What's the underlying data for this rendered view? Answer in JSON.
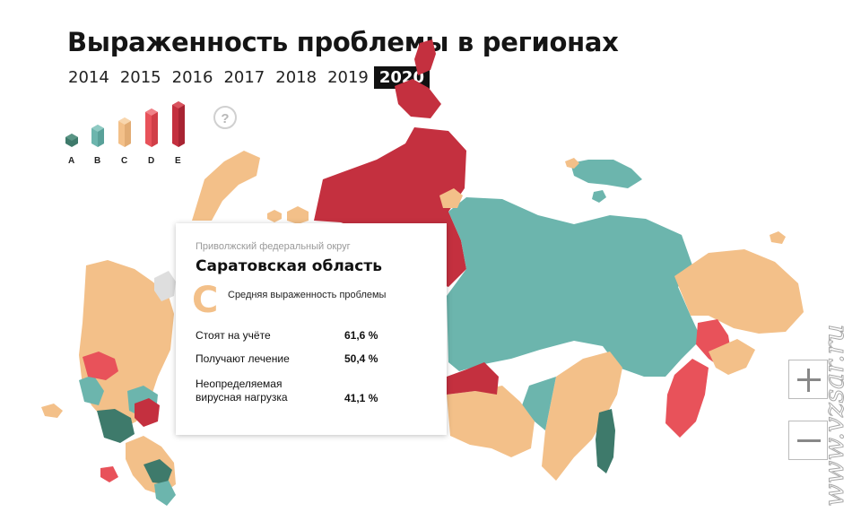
{
  "header": {
    "title": "Выраженность проблемы в регионах"
  },
  "years": {
    "items": [
      "2014",
      "2015",
      "2016",
      "2017",
      "2018",
      "2019",
      "2020"
    ],
    "active": "2020"
  },
  "legend": {
    "items": [
      {
        "label": "A",
        "color": "#3e7a6b"
      },
      {
        "label": "B",
        "color": "#6cb5ad"
      },
      {
        "label": "C",
        "color": "#f3c089"
      },
      {
        "label": "D",
        "color": "#e8525a"
      },
      {
        "label": "E",
        "color": "#c4303f"
      }
    ]
  },
  "help": {
    "label": "?"
  },
  "tooltip": {
    "district": "Приволжский федеральный округ",
    "region": "Саратовская область",
    "grade": "C",
    "grade_desc": "Средняя выраженность проблемы",
    "rows": [
      {
        "label": "Стоят на учёте",
        "value": "61,6 %"
      },
      {
        "label": "Получают лечение",
        "value": "50,4 %"
      },
      {
        "label": "Неопределяемая вирусная нагрузка",
        "value": "41,1 %"
      }
    ]
  },
  "zoom": {
    "in_label": "+",
    "out_label": "−"
  },
  "watermark": {
    "text": "www.vzsar.ru"
  },
  "colors": {
    "A": "#3e7a6b",
    "B": "#6cb5ad",
    "C": "#f3c089",
    "D": "#e8525a",
    "E": "#c4303f",
    "none": "#dedede"
  }
}
